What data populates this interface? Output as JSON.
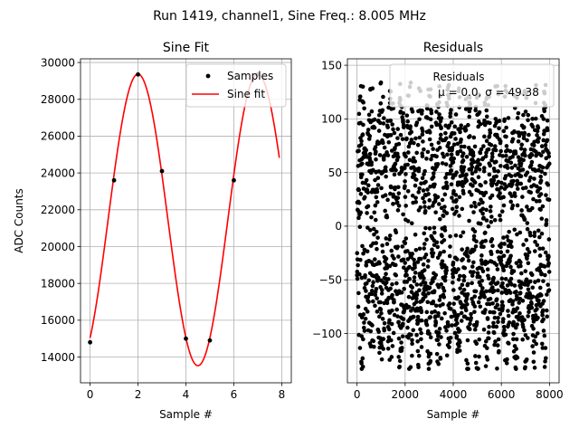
{
  "figure": {
    "suptitle": "Run 1419, channel1, Sine Freq.: 8.005 MHz"
  },
  "colors": {
    "fit_line": "#ff0000",
    "samples": "#000000",
    "grid": "#b0b0b0"
  },
  "chart_data": [
    {
      "type": "line",
      "title": "Sine Fit",
      "xlabel": "Sample #",
      "ylabel": "ADC Counts",
      "xlim": [
        -0.4,
        8.4
      ],
      "ylim": [
        12600,
        30200
      ],
      "xticks": [
        0,
        2,
        4,
        6,
        8
      ],
      "xtick_labels": [
        "0",
        "2",
        "4",
        "6",
        "8"
      ],
      "yticks": [
        14000,
        16000,
        18000,
        20000,
        22000,
        24000,
        26000,
        28000,
        30000
      ],
      "ytick_labels": [
        "14000",
        "16000",
        "18000",
        "20000",
        "22000",
        "24000",
        "26000",
        "28000",
        "30000"
      ],
      "grid": true,
      "legend": {
        "location": "upper right",
        "entries": [
          "Samples",
          "Sine fit"
        ]
      },
      "series": [
        {
          "name": "Samples",
          "style": "markers",
          "x": [
            0,
            1,
            2,
            3,
            4,
            5,
            6,
            7
          ],
          "y": [
            14800,
            23600,
            29350,
            24100,
            15000,
            14900,
            23600,
            29350
          ]
        },
        {
          "name": "Sine fit",
          "style": "line",
          "function": {
            "offset": 21450,
            "amplitude": 7920,
            "period_samples": 5,
            "phase_peak_at": 2.0,
            "x_range": [
              0,
              7.9
            ]
          }
        }
      ]
    },
    {
      "type": "scatter",
      "title": "Residuals",
      "xlabel": "Sample #",
      "ylabel": "",
      "xlim": [
        -400,
        8400
      ],
      "ylim": [
        -146,
        156
      ],
      "xticks": [
        0,
        2000,
        4000,
        6000,
        8000
      ],
      "xtick_labels": [
        "0",
        "2000",
        "4000",
        "6000",
        "8000"
      ],
      "yticks": [
        -100,
        -50,
        0,
        50,
        100,
        150
      ],
      "ytick_labels": [
        "−100",
        "−50",
        "0",
        "50",
        "100",
        "150"
      ],
      "grid": true,
      "legend": {
        "location": "upper right",
        "entries": [
          "Residuals"
        ],
        "stats_line": "μ = 0.0, σ = 49.38"
      },
      "series": [
        {
          "name": "Residuals",
          "style": "markers",
          "n_points": 8000,
          "mean": 0.0,
          "std": 49.38,
          "min": -133,
          "max": 137,
          "band_period_samples": 400
        }
      ]
    }
  ]
}
